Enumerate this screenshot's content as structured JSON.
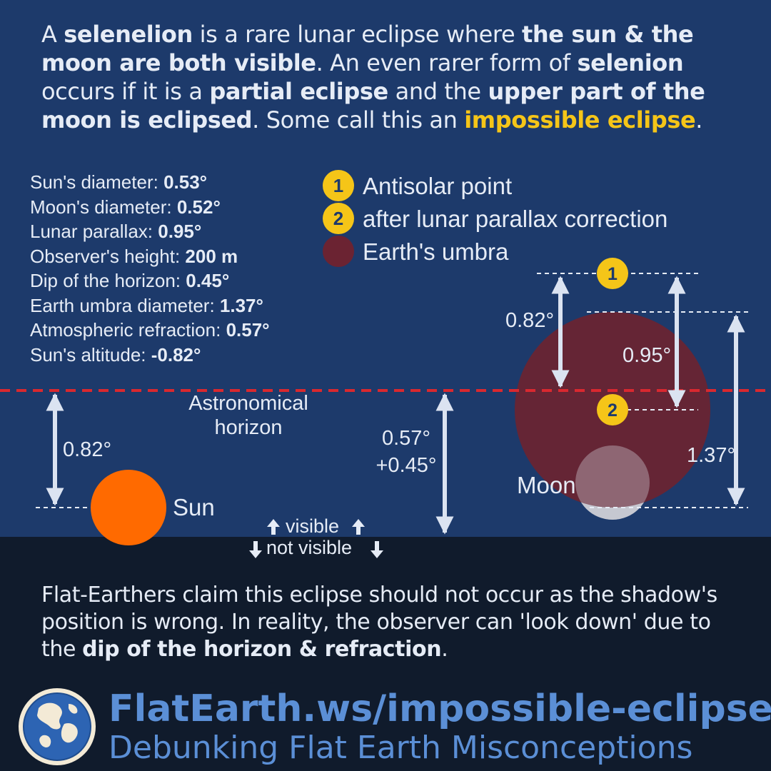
{
  "intro": {
    "p1": "A ",
    "b1": "selenelion",
    "p2": " is a rare lunar eclipse where ",
    "b2": "the sun & the moon are both visible",
    "p3": ". An even rarer form of ",
    "b3": "selenion",
    "p4": " occurs if it is a ",
    "b4": "partial eclipse",
    "p5": " and the ",
    "b5": "upper part of the moon is eclipsed",
    "p6": ". Some call this an ",
    "highlight": "impossible eclipse",
    "p7": "."
  },
  "params": [
    {
      "label": "Sun's diameter: ",
      "value": "0.53°"
    },
    {
      "label": "Moon's diameter: ",
      "value": "0.52°"
    },
    {
      "label": "Lunar parallax: ",
      "value": "0.95°"
    },
    {
      "label": "Observer's height: ",
      "value": "200 m"
    },
    {
      "label": "Dip of the horizon: ",
      "value": "0.45°"
    },
    {
      "label": "Earth umbra diameter: ",
      "value": "1.37°"
    },
    {
      "label": "Atmospheric refraction: ",
      "value": "0.57°"
    },
    {
      "label": "Sun's altitude: ",
      "value": "-0.82°"
    }
  ],
  "legend": {
    "marker1": "1",
    "marker2": "2",
    "item1": "Antisolar point",
    "item2": "after lunar parallax correction",
    "item3": "Earth's umbra"
  },
  "diagram": {
    "horizon_label_1": "Astronomical",
    "horizon_label_2": "horizon",
    "sun_label": "Sun",
    "moon_label": "Moon",
    "sun_altitude": "0.82°",
    "refraction": "0.57°",
    "dip": "+0.45°",
    "antisolar_offset": "0.82°",
    "parallax": "0.95°",
    "umbra_diameter": "1.37°",
    "visible": "visible",
    "not_visible": "not visible",
    "marker1": "1",
    "marker2": "2"
  },
  "colors": {
    "background_top": "#1d3a6b",
    "background_bottom": "#101b2c",
    "horizon_line": "#d9282f",
    "sun": "#ff6a00",
    "umbra": "#6b2332",
    "marker": "#f5c518",
    "brand": "#5b8fd6"
  },
  "footer": {
    "p1": "Flat-Earthers claim this eclipse should not occur as the shadow's position is wrong. In reality, the observer can 'look down' due to the ",
    "b1": "dip of the horizon & refraction",
    "p2": ".",
    "site": "FlatEarth.ws/impossible-eclipse",
    "tagline": "Debunking Flat Earth Misconceptions"
  }
}
